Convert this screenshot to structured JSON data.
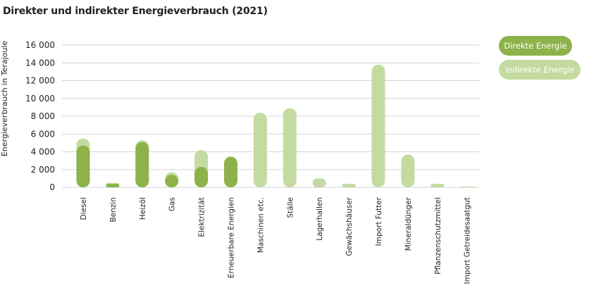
{
  "chart_data": {
    "type": "bar",
    "title": "Direkter und indirekter Energieverbrauch (2021)",
    "ylabel": "Energieverbrauch in Terajoule",
    "ylim": [
      0,
      16000
    ],
    "yticks": [
      0,
      2000,
      4000,
      6000,
      8000,
      10000,
      12000,
      14000,
      16000
    ],
    "ytick_labels": [
      "0",
      "2 000",
      "4 000",
      "6 000",
      "8 000",
      "10 000",
      "12 000",
      "14 000",
      "16 000"
    ],
    "grid": true,
    "legend_position": "right",
    "categories": [
      "Diesel",
      "Benzin",
      "Heizöl",
      "Gas",
      "Elektrizität",
      "Erneuerbare Energien",
      "Maschinen etc.",
      "Ställe",
      "Lagerhallen",
      "Gewächshäuser",
      "Import Futter",
      "Mineraldünger",
      "Pflanzenschutzmittel",
      "Import Getreidesaatgut"
    ],
    "series": [
      {
        "name": "Direkte Energie",
        "color": "#8db24a",
        "values": [
          4700,
          400,
          5100,
          1400,
          2300,
          3400,
          0,
          0,
          0,
          0,
          0,
          0,
          0,
          0
        ]
      },
      {
        "name": "Indirekte Energie",
        "color": "#c3dba0",
        "values": [
          800,
          100,
          200,
          300,
          1900,
          100,
          8400,
          8900,
          1000,
          400,
          13800,
          3700,
          400,
          100
        ]
      }
    ]
  }
}
